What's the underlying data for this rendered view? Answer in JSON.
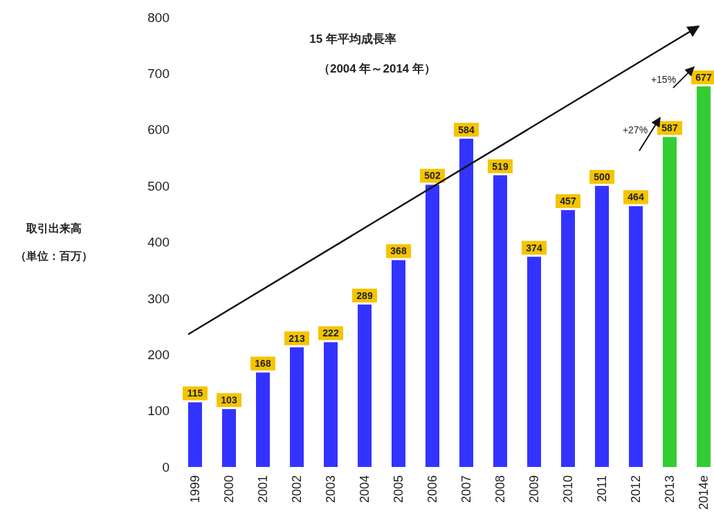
{
  "chart_data": {
    "type": "bar",
    "title": "15 年平均成長率",
    "subtitle": "（2004 年～2014 年）",
    "categories": [
      "1999",
      "2000",
      "2001",
      "2002",
      "2003",
      "2004",
      "2005",
      "2006",
      "2007",
      "2008",
      "2009",
      "2010",
      "2011",
      "2012",
      "2013",
      "2014e"
    ],
    "values": [
      115,
      103,
      168,
      213,
      222,
      289,
      368,
      502,
      584,
      519,
      374,
      457,
      500,
      464,
      587,
      677
    ],
    "colors": [
      "#3333ff",
      "#3333ff",
      "#3333ff",
      "#3333ff",
      "#3333ff",
      "#3333ff",
      "#3333ff",
      "#3333ff",
      "#3333ff",
      "#3333ff",
      "#3333ff",
      "#3333ff",
      "#3333ff",
      "#3333ff",
      "#33cc33",
      "#33cc33"
    ],
    "ylim": [
      0,
      800
    ],
    "yticks": [
      0,
      100,
      200,
      300,
      400,
      500,
      600,
      700,
      800
    ],
    "data_labels": true,
    "grid": false,
    "annotations": [
      "取引出来高",
      "（単位：百万）",
      {
        "text": "+27%",
        "x": "2013",
        "y": 587
      },
      {
        "text": "+15%",
        "x": "2014e",
        "y": 677
      }
    ]
  }
}
